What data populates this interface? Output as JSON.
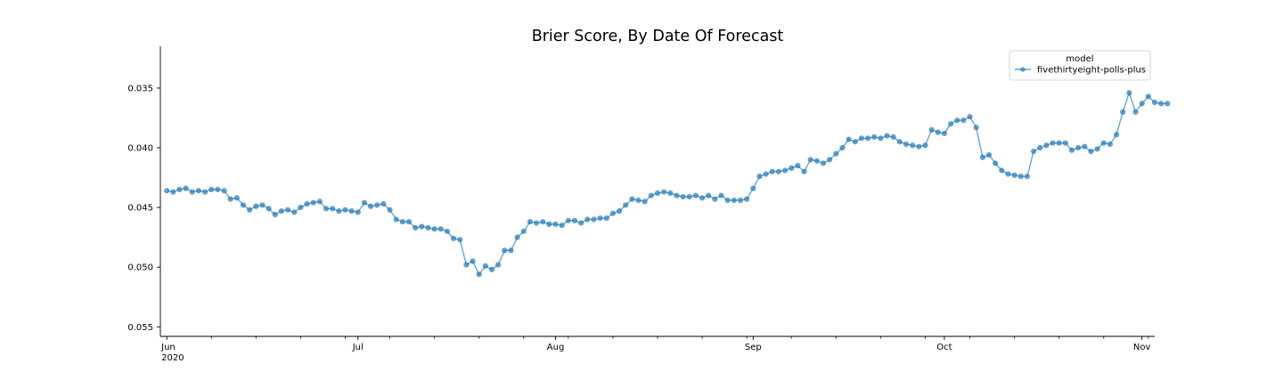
{
  "chart_data": {
    "type": "line",
    "title": "Brier Score, By Date Of Forecast",
    "xlabel": "",
    "ylabel": "",
    "x_axis": {
      "range": [
        "2020-05-31",
        "2020-11-03"
      ],
      "major_ticks": [
        {
          "date": "2020-06-01",
          "label": "Jun",
          "sublabel": "2020"
        },
        {
          "date": "2020-07-01",
          "label": "Jul"
        },
        {
          "date": "2020-08-01",
          "label": "Aug"
        },
        {
          "date": "2020-09-01",
          "label": "Sep"
        },
        {
          "date": "2020-10-01",
          "label": "Oct"
        },
        {
          "date": "2020-11-01",
          "label": "Nov"
        }
      ],
      "minor_ticks": [
        "2020-06-08",
        "2020-06-15",
        "2020-06-22",
        "2020-06-29",
        "2020-07-06",
        "2020-07-13",
        "2020-07-20",
        "2020-07-27",
        "2020-08-03",
        "2020-08-10",
        "2020-08-17",
        "2020-08-24",
        "2020-08-31",
        "2020-09-07",
        "2020-09-14",
        "2020-09-21",
        "2020-09-28",
        "2020-10-05",
        "2020-10-12",
        "2020-10-19",
        "2020-10-26",
        "2020-11-02"
      ]
    },
    "y_axis": {
      "inverted": true,
      "range": [
        0.0558,
        0.0315
      ],
      "ticks": [
        {
          "value": 0.035,
          "label": "0.035"
        },
        {
          "value": 0.04,
          "label": "0.040"
        },
        {
          "value": 0.045,
          "label": "0.045"
        },
        {
          "value": 0.05,
          "label": "0.050"
        },
        {
          "value": 0.055,
          "label": "0.055"
        }
      ]
    },
    "grid": false,
    "legend": {
      "title": "model",
      "position": "top-right",
      "entries": [
        "fivethirtyeight-polls-plus"
      ]
    },
    "series": [
      {
        "name": "fivethirtyeight-polls-plus",
        "color": "#1f77b4",
        "start_date": "2020-06-01",
        "values": [
          0.0436,
          0.0437,
          0.0435,
          0.0434,
          0.0437,
          0.0436,
          0.0437,
          0.0435,
          0.0435,
          0.0436,
          0.0443,
          0.0442,
          0.0448,
          0.0452,
          0.0449,
          0.0448,
          0.0451,
          0.0456,
          0.0453,
          0.0452,
          0.0454,
          0.045,
          0.0447,
          0.0446,
          0.0445,
          0.0451,
          0.0451,
          0.0453,
          0.0452,
          0.0453,
          0.0454,
          0.0446,
          0.0449,
          0.0448,
          0.0447,
          0.0452,
          0.046,
          0.0462,
          0.0462,
          0.0467,
          0.0466,
          0.0467,
          0.0468,
          0.0468,
          0.047,
          0.0476,
          0.0477,
          0.0498,
          0.0495,
          0.0506,
          0.0499,
          0.0502,
          0.0498,
          0.0486,
          0.0486,
          0.0475,
          0.047,
          0.0462,
          0.0463,
          0.0462,
          0.0464,
          0.0464,
          0.0465,
          0.0461,
          0.0461,
          0.0463,
          0.046,
          0.046,
          0.0459,
          0.0459,
          0.0455,
          0.0453,
          0.0448,
          0.0443,
          0.0444,
          0.0445,
          0.044,
          0.0438,
          0.0437,
          0.0438,
          0.044,
          0.0441,
          0.0441,
          0.044,
          0.0442,
          0.044,
          0.0443,
          0.044,
          0.0444,
          0.0444,
          0.0444,
          0.0443,
          0.0434,
          0.0424,
          0.0422,
          0.042,
          0.042,
          0.0419,
          0.0417,
          0.0415,
          0.042,
          0.041,
          0.0411,
          0.0413,
          0.041,
          0.0405,
          0.04,
          0.0393,
          0.0395,
          0.0392,
          0.0392,
          0.0391,
          0.0392,
          0.039,
          0.0391,
          0.0395,
          0.0397,
          0.0398,
          0.0399,
          0.0398,
          0.0385,
          0.0387,
          0.0388,
          0.038,
          0.0377,
          0.0377,
          0.0374,
          0.0383,
          0.0408,
          0.0406,
          0.0413,
          0.0419,
          0.0422,
          0.0423,
          0.0424,
          0.0424,
          0.0403,
          0.04,
          0.0398,
          0.0396,
          0.0396,
          0.0396,
          0.0402,
          0.04,
          0.0399,
          0.0403,
          0.0401,
          0.0396,
          0.0397,
          0.0389,
          0.037,
          0.0354,
          0.037,
          0.0363,
          0.0357,
          0.0362,
          0.0363,
          0.0363
        ]
      }
    ]
  }
}
